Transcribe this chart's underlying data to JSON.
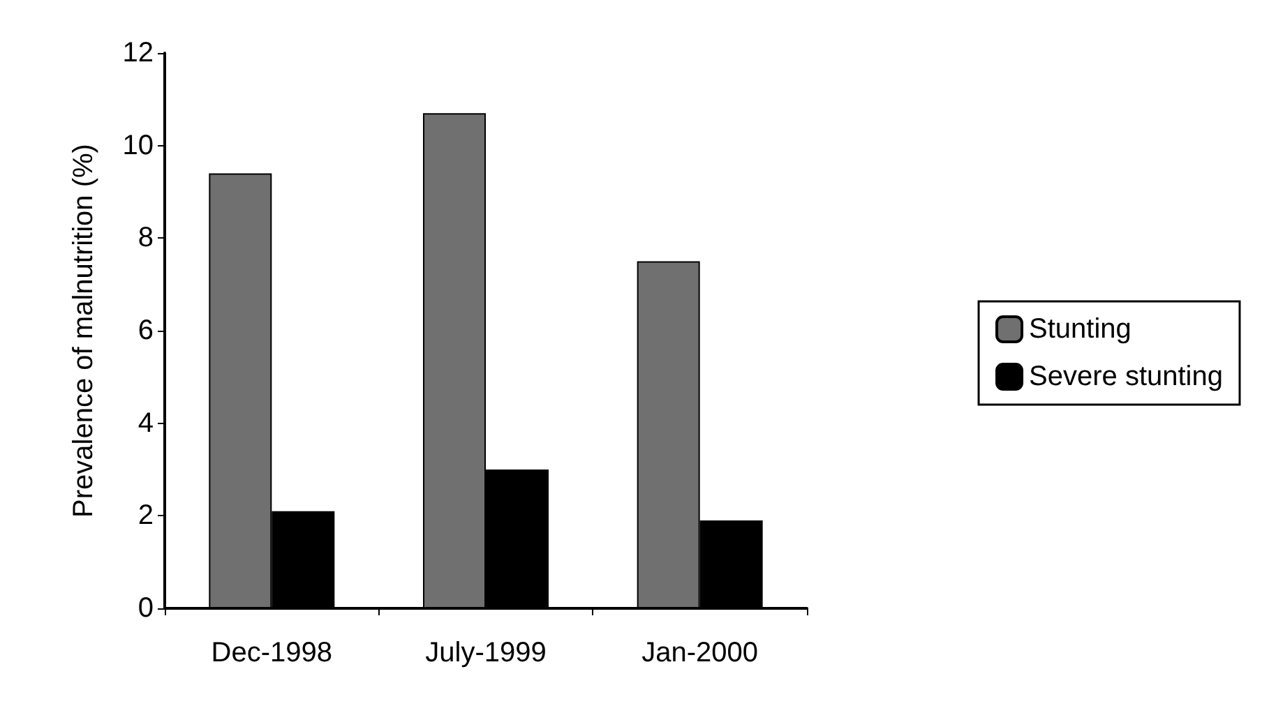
{
  "chart_data": {
    "type": "bar",
    "ylabel": "Prevalence of malnutrition (%)",
    "categories": [
      "Dec-1998",
      "July-1999",
      "Jan-2000"
    ],
    "series": [
      {
        "name": "Stunting",
        "color": "#707070",
        "values": [
          9.4,
          10.7,
          7.5
        ]
      },
      {
        "name": "Severe stunting",
        "color": "#000000",
        "values": [
          2.1,
          3.0,
          1.9
        ]
      }
    ],
    "ylim": [
      0,
      12
    ],
    "yticks": [
      0,
      2,
      4,
      6,
      8,
      10,
      12
    ],
    "grid": false,
    "legend": "right"
  }
}
